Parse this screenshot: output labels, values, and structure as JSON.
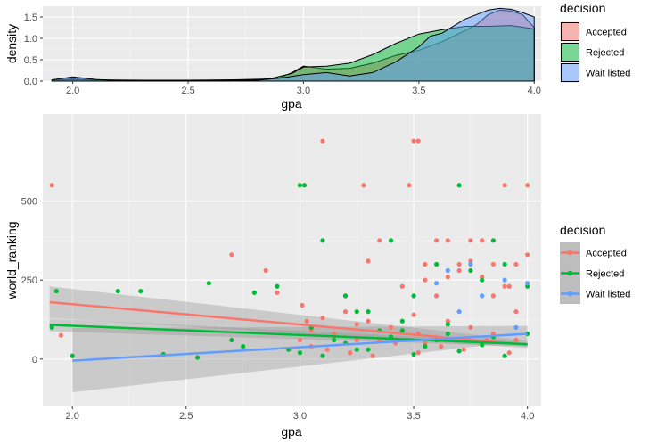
{
  "chart_data": [
    {
      "type": "area",
      "subtype": "density",
      "xlabel": "gpa",
      "ylabel": "density",
      "xlim": [
        1.87,
        4.03
      ],
      "ylim": [
        0,
        1.75
      ],
      "x_ticks": [
        "2.0",
        "2.5",
        "3.0",
        "3.5",
        "4.0"
      ],
      "y_ticks": [
        "0.0",
        "0.5",
        "1.0",
        "1.5"
      ],
      "grid": true,
      "legend_position": "right",
      "legend": {
        "title": "decision",
        "entries": [
          "Accepted",
          "Rejected",
          "Wait listed"
        ]
      },
      "series": [
        {
          "name": "Accepted",
          "color": "#f8766d",
          "x": [
            1.91,
            2.0,
            2.1,
            2.2,
            2.4,
            2.6,
            2.8,
            2.9,
            2.95,
            3.0,
            3.1,
            3.2,
            3.3,
            3.4,
            3.5,
            3.6,
            3.7,
            3.75,
            3.8,
            3.85,
            3.9,
            3.95,
            4.0
          ],
          "values": [
            0.02,
            0.03,
            0.02,
            0.01,
            0.01,
            0.02,
            0.03,
            0.08,
            0.2,
            0.35,
            0.28,
            0.3,
            0.42,
            0.6,
            0.72,
            0.92,
            1.18,
            1.32,
            1.55,
            1.66,
            1.64,
            1.55,
            1.25
          ]
        },
        {
          "name": "Rejected",
          "color": "#00ba38",
          "x": [
            1.91,
            2.0,
            2.1,
            2.3,
            2.5,
            2.7,
            2.85,
            2.95,
            3.0,
            3.1,
            3.2,
            3.3,
            3.4,
            3.5,
            3.6,
            3.7,
            3.8,
            3.9,
            4.0
          ],
          "values": [
            0.03,
            0.05,
            0.03,
            0.02,
            0.02,
            0.03,
            0.05,
            0.18,
            0.33,
            0.35,
            0.42,
            0.62,
            0.88,
            1.1,
            1.2,
            1.28,
            1.28,
            1.3,
            1.22
          ]
        },
        {
          "name": "Wait listed",
          "color": "#619cff",
          "x": [
            1.91,
            2.0,
            2.1,
            2.2,
            2.5,
            2.8,
            2.9,
            3.0,
            3.1,
            3.2,
            3.3,
            3.4,
            3.5,
            3.55,
            3.6,
            3.7,
            3.8,
            3.85,
            3.9,
            3.95,
            4.0
          ],
          "values": [
            0.03,
            0.1,
            0.04,
            0.01,
            0.01,
            0.02,
            0.07,
            0.15,
            0.2,
            0.12,
            0.2,
            0.45,
            0.8,
            1.05,
            1.12,
            1.45,
            1.66,
            1.7,
            1.68,
            1.6,
            1.5
          ]
        }
      ]
    },
    {
      "type": "scatter",
      "xlabel": "gpa",
      "ylabel": "world_ranking",
      "xlim": [
        1.87,
        4.06
      ],
      "ylim": [
        -150,
        775
      ],
      "x_ticks": [
        "2.0",
        "2.5",
        "3.0",
        "3.5",
        "4.0"
      ],
      "y_ticks": [
        "0",
        "250",
        "500"
      ],
      "grid": true,
      "legend_position": "right",
      "legend": {
        "title": "decision",
        "entries": [
          "Accepted",
          "Rejected",
          "Wait listed"
        ]
      },
      "trend_lines": [
        {
          "name": "Accepted",
          "color": "#f8766d",
          "x": [
            1.9,
            4.0
          ],
          "y": [
            180,
            45
          ],
          "ci_lower": [
            130,
            35
          ],
          "ci_upper": [
            230,
            58
          ]
        },
        {
          "name": "Rejected",
          "color": "#00ba38",
          "x": [
            1.9,
            4.0
          ],
          "y": [
            108,
            47
          ],
          "ci_lower": [
            88,
            40
          ],
          "ci_upper": [
            128,
            54
          ]
        },
        {
          "name": "Wait listed",
          "color": "#619cff",
          "x": [
            2.0,
            4.0
          ],
          "y": [
            -5,
            80
          ],
          "ci_lower": [
            -105,
            58
          ],
          "ci_upper": [
            98,
            105
          ]
        }
      ],
      "series": [
        {
          "name": "Accepted",
          "color": "#f8766d",
          "x": [
            1.91,
            1.95,
            2.7,
            2.85,
            2.9,
            3.0,
            3.01,
            3.03,
            3.05,
            3.1,
            3.15,
            3.2,
            3.25,
            3.28,
            3.3,
            3.35,
            3.4,
            3.45,
            3.48,
            3.5,
            3.52,
            3.55,
            3.6,
            3.65,
            3.7,
            3.75,
            3.8,
            3.85,
            3.9,
            3.92,
            3.95,
            4.0,
            3.1,
            3.2,
            3.5,
            3.52,
            3.0,
            3.3,
            3.55,
            3.6,
            3.65,
            3.7,
            3.75,
            3.8,
            3.85,
            3.9,
            3.95,
            4.0,
            3.05,
            3.15,
            3.25,
            3.35,
            3.45,
            3.55,
            3.65,
            3.75,
            3.85,
            3.95,
            3.12,
            3.22,
            3.32,
            3.42,
            3.52,
            3.62,
            3.72,
            3.82,
            3.92
          ],
          "y": [
            550,
            75,
            330,
            280,
            210,
            550,
            170,
            120,
            90,
            690,
            80,
            150,
            60,
            550,
            120,
            375,
            100,
            230,
            550,
            690,
            690,
            300,
            375,
            375,
            300,
            375,
            375,
            300,
            550,
            230,
            300,
            550,
            130,
            200,
            140,
            80,
            60,
            310,
            250,
            200,
            260,
            280,
            310,
            260,
            200,
            230,
            150,
            330,
            40,
            70,
            110,
            60,
            90,
            50,
            120,
            100,
            80,
            60,
            30,
            20,
            10,
            50,
            20,
            40,
            30,
            60,
            20
          ]
        },
        {
          "name": "Rejected",
          "color": "#00ba38",
          "x": [
            1.91,
            1.93,
            2.0,
            2.2,
            2.3,
            2.6,
            2.7,
            2.8,
            2.9,
            3.0,
            3.02,
            3.05,
            3.1,
            3.2,
            3.3,
            3.4,
            3.5,
            3.6,
            3.7,
            3.75,
            3.8,
            3.85,
            3.9,
            4.0,
            3.15,
            3.25,
            3.35,
            3.45,
            3.55,
            3.65,
            3.0,
            3.1,
            3.2,
            3.3,
            3.4,
            3.5,
            3.6,
            3.7,
            3.8,
            3.9,
            4.0,
            2.4,
            2.55,
            2.75,
            2.95,
            3.05,
            3.25,
            3.45,
            3.65,
            3.85
          ],
          "y": [
            100,
            215,
            10,
            215,
            215,
            240,
            60,
            210,
            230,
            550,
            550,
            100,
            375,
            200,
            150,
            375,
            200,
            300,
            550,
            280,
            250,
            375,
            300,
            230,
            60,
            30,
            90,
            120,
            40,
            80,
            20,
            10,
            50,
            30,
            70,
            15,
            60,
            25,
            45,
            10,
            80,
            15,
            5,
            40,
            30,
            100,
            150,
            90,
            110,
            70
          ]
        },
        {
          "name": "Wait listed",
          "color": "#619cff",
          "x": [
            3.6,
            3.65,
            3.9,
            4.0,
            3.75,
            3.8,
            3.7,
            3.95
          ],
          "y": [
            240,
            280,
            250,
            240,
            300,
            200,
            150,
            100
          ]
        }
      ]
    }
  ]
}
